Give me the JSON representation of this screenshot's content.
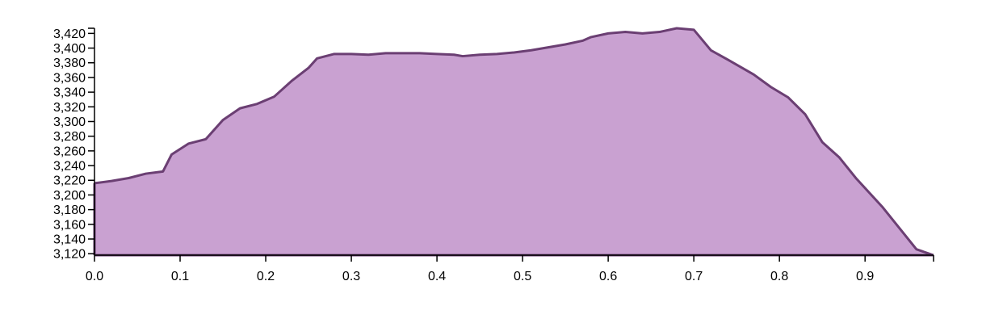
{
  "chart_data": {
    "type": "area",
    "x": [
      0.0,
      0.02,
      0.04,
      0.06,
      0.08,
      0.09,
      0.11,
      0.13,
      0.15,
      0.17,
      0.19,
      0.21,
      0.23,
      0.25,
      0.26,
      0.28,
      0.3,
      0.32,
      0.34,
      0.36,
      0.38,
      0.4,
      0.42,
      0.43,
      0.45,
      0.47,
      0.49,
      0.51,
      0.53,
      0.55,
      0.57,
      0.58,
      0.6,
      0.62,
      0.64,
      0.66,
      0.68,
      0.7,
      0.72,
      0.74,
      0.77,
      0.79,
      0.81,
      0.83,
      0.85,
      0.87,
      0.89,
      0.92,
      0.94,
      0.96,
      0.98
    ],
    "y": [
      3216,
      3219,
      3223,
      3229,
      3232,
      3255,
      3270,
      3276,
      3302,
      3318,
      3324,
      3334,
      3355,
      3373,
      3386,
      3392,
      3392,
      3391,
      3393,
      3393,
      3393,
      3392,
      3391,
      3389,
      3391,
      3392,
      3394,
      3397,
      3401,
      3405,
      3410,
      3415,
      3420,
      3422,
      3420,
      3422,
      3427,
      3425,
      3397,
      3384,
      3364,
      3347,
      3333,
      3310,
      3272,
      3251,
      3222,
      3184,
      3155,
      3126,
      3118
    ],
    "xlim": [
      0,
      0.98
    ],
    "ylim": [
      3118,
      3427
    ],
    "x_ticks": [
      0.0,
      0.1,
      0.2,
      0.3,
      0.4,
      0.5,
      0.6,
      0.7,
      0.8,
      0.9
    ],
    "x_tick_labels": [
      "0.0",
      "0.1",
      "0.2",
      "0.3",
      "0.4",
      "0.5",
      "0.6",
      "0.7",
      "0.8",
      "0.9"
    ],
    "y_ticks": [
      3120,
      3140,
      3160,
      3180,
      3200,
      3220,
      3240,
      3260,
      3280,
      3300,
      3320,
      3340,
      3360,
      3380,
      3400,
      3420
    ],
    "y_tick_labels": [
      "3,120",
      "3,140",
      "3,160",
      "3,180",
      "3,200",
      "3,220",
      "3,240",
      "3,260",
      "3,280",
      "3,300",
      "3,320",
      "3,340",
      "3,360",
      "3,380",
      "3,400",
      "3,420"
    ],
    "title": "",
    "xlabel": "",
    "ylabel": "",
    "grid": false,
    "legend": "none",
    "colors": {
      "fill": "#c9a1d1",
      "stroke": "#6b3f73",
      "axis": "#000000"
    }
  }
}
